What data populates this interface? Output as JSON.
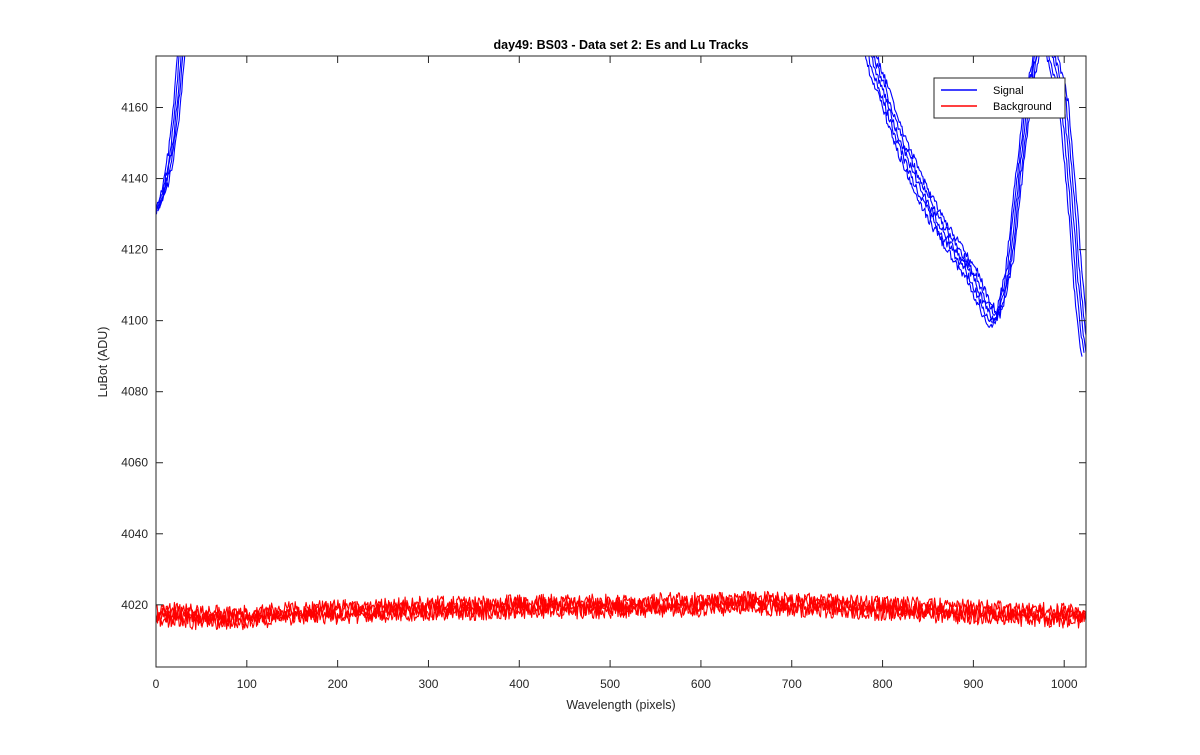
{
  "chart_data": {
    "type": "line",
    "title": "day49: BS03 - Data set 2: Es and Lu Tracks",
    "xlabel": "Wavelength (pixels)",
    "ylabel": "LuBot (ADU)",
    "xlim": [
      0,
      1024
    ],
    "ylim": [
      4002.5,
      4174.5
    ],
    "xticks": [
      0,
      100,
      200,
      300,
      400,
      500,
      600,
      700,
      800,
      900,
      1000
    ],
    "yticks": [
      4020,
      4040,
      4060,
      4080,
      4100,
      4120,
      4140,
      4160
    ],
    "grid": false,
    "box": true,
    "legend": {
      "location": "top-right",
      "entries": [
        "Signal",
        "Background"
      ]
    },
    "series": [
      {
        "name": "Signal",
        "color": "#0000ff",
        "replicates": 5,
        "noise_amplitude": 1.2,
        "x": [
          0,
          5,
          10,
          15,
          20,
          25,
          28,
          30,
          780,
          790,
          800,
          820,
          840,
          860,
          880,
          900,
          910,
          920,
          925,
          930,
          940,
          950,
          960,
          970,
          975,
          980,
          1000,
          1010,
          1015,
          1020,
          1024
        ],
        "y": [
          4131,
          4133,
          4138,
          4144,
          4153,
          4166,
          4176,
          4182,
          4182,
          4172,
          4165,
          4150,
          4138,
          4128,
          4120,
          4112,
          4106,
          4101,
          4100,
          4104,
          4116,
          4140,
          4162,
          4176,
          4185,
          4182,
          4160,
          4130,
          4112,
          4099,
          4091
        ]
      },
      {
        "name": "Background",
        "color": "#ff0000",
        "replicates": 4,
        "noise_amplitude": 2.2,
        "x": [
          0,
          50,
          100,
          150,
          200,
          250,
          300,
          350,
          400,
          450,
          500,
          550,
          600,
          650,
          700,
          750,
          800,
          850,
          900,
          950,
          1000,
          1024
        ],
        "y": [
          4017.5,
          4016.5,
          4016.5,
          4017.5,
          4018,
          4018.5,
          4019,
          4019,
          4019.5,
          4019.5,
          4019.5,
          4020,
          4020,
          4020.5,
          4020,
          4019.5,
          4019,
          4018.5,
          4018,
          4017.5,
          4017,
          4017
        ]
      }
    ]
  }
}
